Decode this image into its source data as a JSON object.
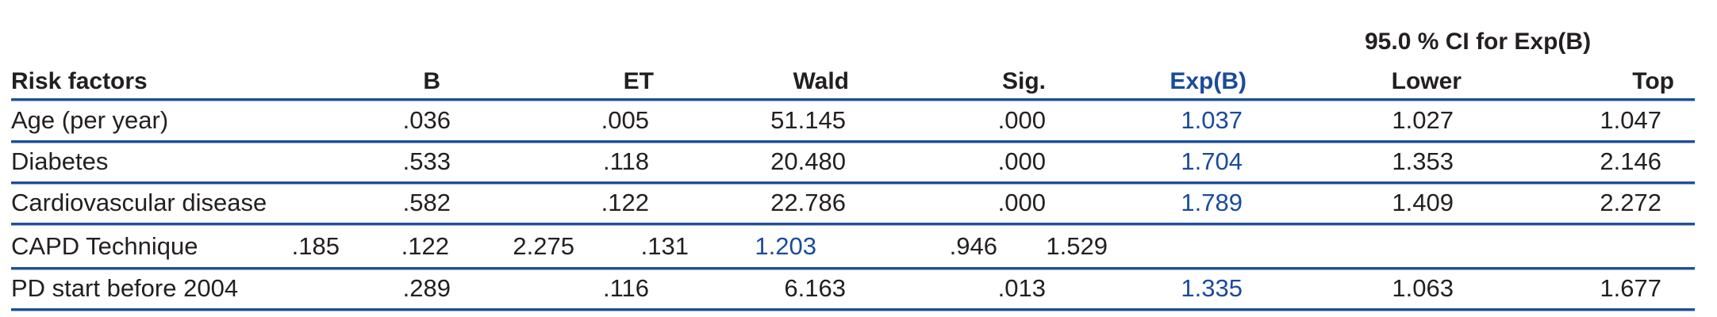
{
  "header": {
    "ci_group": "95.0 % CI for Exp(B)",
    "columns": [
      "Risk factors",
      "B",
      "ET",
      "Wald",
      "Sig.",
      "Exp(B)",
      "Lower",
      "Top"
    ]
  },
  "rows": [
    {
      "factor": "Age (per year)",
      "values": [
        ".036",
        ".005",
        "51.145",
        ".000",
        "1.037",
        "1.027",
        "1.047"
      ]
    },
    {
      "factor": "Diabetes",
      "values": [
        ".533",
        ".118",
        "20.480",
        ".000",
        "1.704",
        "1.353",
        "2.146"
      ]
    },
    {
      "factor": "Cardiovascular disease",
      "values": [
        ".582",
        ".122",
        "22.786",
        ".000",
        "1.789",
        "1.409",
        "2.272"
      ]
    },
    {
      "factor": "CAPD Technique",
      "values": [
        ".185",
        ".122",
        "2.275",
        ".131",
        "1.203",
        ".946",
        "1.529"
      ]
    },
    {
      "factor": "PD start before 2004",
      "values": [
        ".289",
        ".116",
        "6.163",
        ".013",
        "1.335",
        "1.063",
        "1.677"
      ]
    }
  ],
  "colors": {
    "accent": "#1a4b9b",
    "rule": "#1f4e99",
    "text": "#231f20"
  }
}
